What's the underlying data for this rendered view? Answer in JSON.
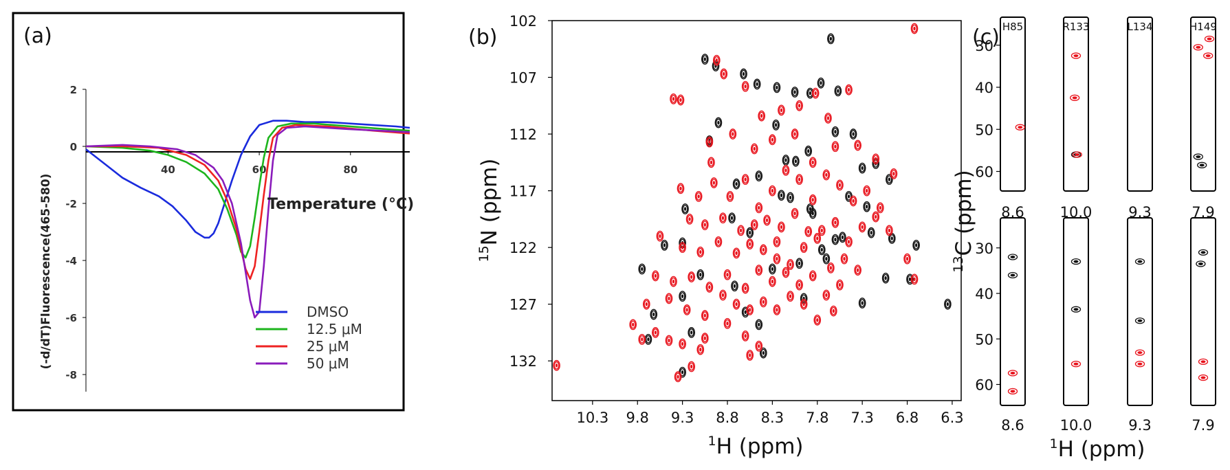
{
  "figure": {
    "panel_a_label": "(a)",
    "panel_b_label": "(b)",
    "panel_c_label": "(c)"
  },
  "colors": {
    "dmso": "#1a2bdd",
    "c12": "#1db51d",
    "c25": "#ee2222",
    "c50": "#8a1bbb",
    "red_peak": "#e8121b",
    "black_peak": "#111111"
  },
  "chart_data": [
    {
      "id": "a",
      "type": "line",
      "title": "",
      "xlabel": "Temperature (°C)",
      "ylabel": "(-d/dT)Fluorescence(465-580)",
      "xlim": [
        22,
        93
      ],
      "ylim": [
        -8.6,
        2
      ],
      "xticks": [
        40,
        60,
        80
      ],
      "xtick_labels": [
        "40",
        "60",
        "80"
      ],
      "yticks": [
        2,
        0,
        -2,
        -4,
        -6,
        -8
      ],
      "ytick_labels": [
        "2",
        "0",
        "-2",
        "-4",
        "-6",
        "-8"
      ],
      "legend": [
        "DMSO",
        "12.5 μM",
        "25 μM",
        "50 μM"
      ],
      "legend_position": "bottom-right",
      "series": [
        {
          "name": "DMSO",
          "key": "dmso",
          "x": [
            22,
            26,
            30,
            34,
            38,
            41,
            44,
            46,
            48,
            49,
            50,
            51,
            52,
            54,
            56,
            58,
            60,
            63,
            66,
            70,
            75,
            80,
            85,
            90,
            93
          ],
          "y": [
            -0.1,
            -0.6,
            -1.1,
            -1.45,
            -1.75,
            -2.1,
            -2.6,
            -3.0,
            -3.2,
            -3.2,
            -3.05,
            -2.7,
            -2.2,
            -1.2,
            -0.3,
            0.35,
            0.75,
            0.9,
            0.9,
            0.85,
            0.85,
            0.8,
            0.75,
            0.7,
            0.65
          ]
        },
        {
          "name": "12.5 μM",
          "key": "c12",
          "x": [
            22,
            30,
            36,
            40,
            44,
            48,
            51,
            53,
            55,
            56,
            57,
            58,
            59,
            60,
            61,
            62,
            64,
            67,
            72,
            80,
            88,
            93
          ],
          "y": [
            0.0,
            -0.05,
            -0.15,
            -0.3,
            -0.55,
            -0.95,
            -1.5,
            -2.2,
            -3.1,
            -3.7,
            -3.9,
            -3.5,
            -2.5,
            -1.4,
            -0.4,
            0.3,
            0.7,
            0.8,
            0.8,
            0.7,
            0.6,
            0.55
          ]
        },
        {
          "name": "25 μM",
          "key": "c25",
          "x": [
            22,
            30,
            38,
            44,
            48,
            51,
            53,
            55,
            56,
            57,
            58,
            59,
            60,
            61,
            62,
            63,
            65,
            68,
            75,
            85,
            93
          ],
          "y": [
            0.0,
            0.0,
            -0.05,
            -0.3,
            -0.65,
            -1.2,
            -1.9,
            -2.9,
            -3.6,
            -4.3,
            -4.65,
            -4.2,
            -3.0,
            -1.7,
            -0.5,
            0.3,
            0.65,
            0.75,
            0.7,
            0.55,
            0.45
          ]
        },
        {
          "name": "50 μM",
          "key": "c50",
          "x": [
            22,
            30,
            36,
            42,
            46,
            50,
            52,
            54,
            56,
            57,
            58,
            59,
            60,
            61,
            62,
            63,
            64,
            66,
            70,
            80,
            93
          ],
          "y": [
            0.0,
            0.05,
            0.0,
            -0.1,
            -0.3,
            -0.75,
            -1.2,
            -2.0,
            -3.4,
            -4.4,
            -5.4,
            -6.0,
            -5.8,
            -4.2,
            -2.2,
            -0.5,
            0.4,
            0.65,
            0.7,
            0.6,
            0.5
          ]
        }
      ]
    },
    {
      "id": "b",
      "type": "scatter",
      "title": "",
      "xlabel": "1H (ppm)",
      "ylabel": "15N (ppm)",
      "xlim": [
        10.75,
        6.2
      ],
      "ylim": [
        102,
        135.5
      ],
      "xticks": [
        10.3,
        9.8,
        9.3,
        8.8,
        8.3,
        7.8,
        7.3,
        6.8,
        6.3
      ],
      "xtick_labels": [
        "10.3",
        "9.8",
        "9.3",
        "8.8",
        "8.3",
        "7.8",
        "7.3",
        "6.8",
        "6.3"
      ],
      "yticks": [
        102,
        107,
        112,
        117,
        122,
        127,
        132
      ],
      "ytick_labels": [
        "102",
        "107",
        "112",
        "117",
        "122",
        "127",
        "132"
      ],
      "series": [
        {
          "name": "black",
          "color_key": "black_peak",
          "x": [
            7.65,
            9.05,
            8.93,
            8.62,
            8.47,
            8.25,
            8.05,
            7.88,
            7.76,
            7.57,
            8.9,
            9.0,
            8.26,
            7.9,
            7.6,
            7.4,
            8.04,
            8.45,
            8.7,
            7.3,
            7.15,
            7.0,
            7.45,
            7.25,
            8.1,
            7.85,
            8.55,
            9.3,
            9.27,
            9.5,
            9.75,
            9.62,
            9.3,
            9.1,
            8.72,
            8.3,
            8.0,
            7.75,
            7.52,
            7.2,
            6.97,
            6.7,
            6.35,
            8.6,
            9.2,
            8.45,
            7.95,
            7.3,
            7.04,
            8.4,
            9.3,
            7.6,
            8.75,
            8.2,
            7.88,
            7.7,
            8.15,
            9.68,
            6.77
          ],
          "y": [
            103.6,
            105.4,
            106.0,
            106.7,
            107.6,
            107.9,
            108.3,
            108.4,
            107.5,
            108.2,
            111.0,
            112.6,
            111.2,
            113.5,
            111.8,
            112.0,
            114.4,
            115.7,
            116.4,
            115.0,
            114.6,
            116.0,
            117.5,
            118.4,
            117.6,
            119.0,
            120.7,
            121.6,
            118.6,
            121.8,
            123.9,
            127.9,
            126.3,
            124.4,
            125.4,
            123.9,
            123.4,
            122.2,
            121.1,
            120.7,
            121.2,
            121.8,
            127.0,
            127.7,
            129.5,
            128.8,
            126.5,
            126.9,
            124.7,
            131.3,
            133.0,
            121.3,
            119.4,
            117.4,
            118.6,
            123.0,
            114.3,
            130.1,
            124.8
          ]
        },
        {
          "name": "red",
          "color_key": "red_peak",
          "x": [
            6.72,
            8.92,
            9.4,
            9.32,
            8.84,
            8.6,
            8.42,
            8.2,
            8.0,
            7.82,
            7.68,
            7.45,
            9.0,
            8.98,
            8.74,
            8.5,
            8.3,
            8.05,
            7.85,
            7.6,
            7.35,
            7.15,
            9.32,
            9.12,
            8.95,
            8.77,
            8.6,
            8.45,
            8.3,
            8.15,
            8.0,
            7.85,
            7.7,
            7.55,
            7.4,
            7.25,
            7.1,
            6.95,
            9.22,
            9.05,
            8.85,
            8.65,
            8.5,
            8.36,
            8.2,
            8.05,
            7.9,
            7.75,
            7.6,
            7.45,
            7.3,
            7.15,
            7.0,
            6.8,
            9.55,
            9.3,
            9.1,
            8.9,
            8.7,
            8.55,
            8.4,
            8.25,
            8.1,
            7.95,
            7.8,
            7.65,
            7.5,
            7.35,
            6.72,
            9.6,
            9.4,
            9.2,
            9.0,
            8.8,
            8.6,
            8.45,
            8.3,
            8.15,
            8.0,
            7.85,
            7.7,
            7.55,
            9.7,
            9.45,
            9.25,
            9.05,
            8.85,
            8.7,
            8.55,
            8.4,
            8.25,
            8.1,
            7.95,
            7.8,
            7.62,
            9.85,
            9.6,
            9.3,
            9.05,
            8.8,
            8.6,
            8.45,
            9.75,
            9.45,
            9.1,
            8.55,
            9.2,
            9.35,
            10.7,
            8.25
          ],
          "y": [
            102.7,
            105.5,
            108.9,
            109.0,
            106.7,
            107.8,
            110.4,
            109.9,
            109.5,
            108.4,
            110.6,
            108.1,
            112.7,
            114.5,
            112.0,
            113.3,
            112.5,
            112.0,
            114.5,
            113.1,
            113.0,
            114.2,
            116.8,
            117.5,
            116.3,
            117.5,
            116.0,
            118.5,
            117.0,
            115.2,
            116.0,
            117.8,
            115.6,
            116.5,
            117.9,
            117.0,
            118.5,
            115.5,
            119.5,
            120.0,
            119.4,
            120.5,
            120.0,
            119.6,
            120.2,
            119.0,
            120.6,
            120.5,
            119.8,
            121.5,
            120.2,
            119.3,
            120.5,
            123.0,
            121.0,
            122.0,
            122.4,
            121.5,
            122.5,
            121.7,
            122.2,
            121.5,
            123.5,
            122.0,
            121.2,
            123.8,
            123.0,
            124.0,
            124.8,
            124.5,
            125.0,
            124.6,
            125.5,
            124.4,
            125.6,
            124.0,
            125.0,
            124.2,
            125.3,
            124.5,
            126.2,
            125.3,
            127.0,
            126.5,
            127.5,
            128.0,
            126.2,
            127.0,
            127.5,
            126.8,
            127.5,
            126.3,
            127.0,
            128.4,
            127.6,
            128.8,
            129.5,
            130.5,
            130.0,
            128.7,
            129.8,
            130.7,
            130.1,
            130.2,
            131.0,
            131.5,
            132.5,
            133.4,
            132.4,
            123.0
          ]
        }
      ]
    }
  ],
  "panel_c": {
    "xlabel": "1H (ppm)",
    "ylabel": "13C (ppm)",
    "ylim": [
      24,
      64
    ],
    "yticks": [
      30,
      40,
      50,
      60
    ],
    "ytick_labels": [
      "30",
      "40",
      "50",
      "60"
    ],
    "top_strips": [
      {
        "label": "H85",
        "xtick": "8.6",
        "red": [
          [
            0.8,
            49.5
          ]
        ],
        "black": []
      },
      {
        "label": "R133",
        "xtick": "10.0",
        "red": [
          [
            0.5,
            32.5
          ],
          [
            0.45,
            42.5
          ],
          [
            0.55,
            56.0
          ]
        ],
        "black": [
          [
            0.5,
            56.0
          ]
        ]
      },
      {
        "label": "L134",
        "xtick": "9.3",
        "red": [],
        "black": []
      },
      {
        "label": "H149",
        "xtick": "7.9",
        "red": [
          [
            0.3,
            30.5
          ],
          [
            0.75,
            28.5
          ],
          [
            0.7,
            32.5
          ]
        ],
        "black": [
          [
            0.45,
            58.5
          ],
          [
            0.3,
            56.5
          ]
        ]
      }
    ],
    "bottom_strips": [
      {
        "xtick": "8.6",
        "red": [
          [
            0.5,
            57.5
          ],
          [
            0.5,
            61.5
          ]
        ],
        "black": [
          [
            0.5,
            32.0
          ],
          [
            0.5,
            36.0
          ]
        ]
      },
      {
        "xtick": "10.0",
        "red": [
          [
            0.5,
            55.5
          ]
        ],
        "black": [
          [
            0.5,
            33.0
          ],
          [
            0.5,
            43.5
          ]
        ]
      },
      {
        "xtick": "9.3",
        "red": [
          [
            0.5,
            53.0
          ],
          [
            0.5,
            55.5
          ]
        ],
        "black": [
          [
            0.5,
            33.0
          ],
          [
            0.5,
            46.0
          ]
        ]
      },
      {
        "xtick": "7.9",
        "red": [
          [
            0.5,
            55.0
          ],
          [
            0.5,
            58.5
          ]
        ],
        "black": [
          [
            0.5,
            31.0
          ],
          [
            0.4,
            33.5
          ]
        ]
      }
    ]
  }
}
